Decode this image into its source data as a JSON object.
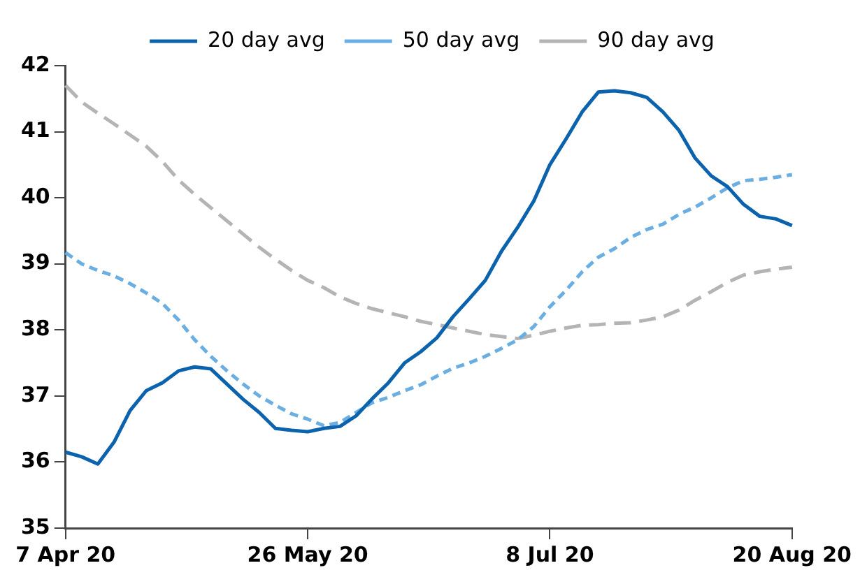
{
  "chart_data": {
    "type": "line",
    "categories": [
      "7 Apr 20",
      null,
      null,
      null,
      null,
      null,
      null,
      null,
      null,
      null,
      null,
      null,
      null,
      null,
      null,
      "26 May 20",
      null,
      null,
      null,
      null,
      null,
      null,
      null,
      null,
      null,
      null,
      null,
      null,
      null,
      null,
      "8 Jul 20",
      null,
      null,
      null,
      null,
      null,
      null,
      null,
      null,
      null,
      null,
      null,
      null,
      null,
      null,
      "20 Aug 20"
    ],
    "series": [
      {
        "name": "20 day avg",
        "color": "#0b62ad",
        "line_style": "solid",
        "values": [
          36.15,
          36.08,
          35.97,
          36.3,
          36.78,
          37.08,
          37.2,
          37.38,
          37.44,
          37.41,
          37.18,
          36.95,
          36.75,
          36.51,
          36.48,
          36.46,
          36.51,
          36.54,
          36.7,
          36.96,
          37.2,
          37.5,
          37.67,
          37.88,
          38.2,
          38.47,
          38.75,
          39.19,
          39.55,
          39.95,
          40.5,
          40.89,
          41.3,
          41.6,
          41.62,
          41.59,
          41.52,
          41.3,
          41.02,
          40.6,
          40.33,
          40.17,
          39.9,
          39.72,
          39.68,
          39.58
        ]
      },
      {
        "name": "50 day avg",
        "color": "#6aaee2",
        "line_style": "dashed",
        "values": [
          39.17,
          39.0,
          38.9,
          38.82,
          38.7,
          38.56,
          38.4,
          38.15,
          37.85,
          37.6,
          37.38,
          37.18,
          37.0,
          36.86,
          36.73,
          36.65,
          36.55,
          36.6,
          36.75,
          36.9,
          36.98,
          37.08,
          37.17,
          37.3,
          37.42,
          37.5,
          37.6,
          37.72,
          37.85,
          38.05,
          38.35,
          38.6,
          38.88,
          39.1,
          39.23,
          39.4,
          39.52,
          39.6,
          39.75,
          39.86,
          40.0,
          40.15,
          40.26,
          40.28,
          40.31,
          40.35
        ]
      },
      {
        "name": "90 day avg",
        "color": "#b4b4b4",
        "line_style": "dashed",
        "values": [
          41.7,
          41.45,
          41.28,
          41.12,
          40.95,
          40.78,
          40.55,
          40.27,
          40.05,
          39.85,
          39.65,
          39.45,
          39.25,
          39.07,
          38.9,
          38.75,
          38.64,
          38.5,
          38.4,
          38.32,
          38.26,
          38.2,
          38.13,
          38.08,
          38.03,
          37.98,
          37.93,
          37.9,
          37.87,
          37.92,
          37.98,
          38.03,
          38.07,
          38.08,
          38.1,
          38.11,
          38.15,
          38.2,
          38.3,
          38.45,
          38.58,
          38.72,
          38.83,
          38.88,
          38.92,
          38.95
        ]
      }
    ],
    "ylim": [
      35,
      42
    ],
    "yticks": [
      35,
      36,
      37,
      38,
      39,
      40,
      41,
      42
    ],
    "grid": false,
    "legend": "top",
    "marker": "none"
  }
}
